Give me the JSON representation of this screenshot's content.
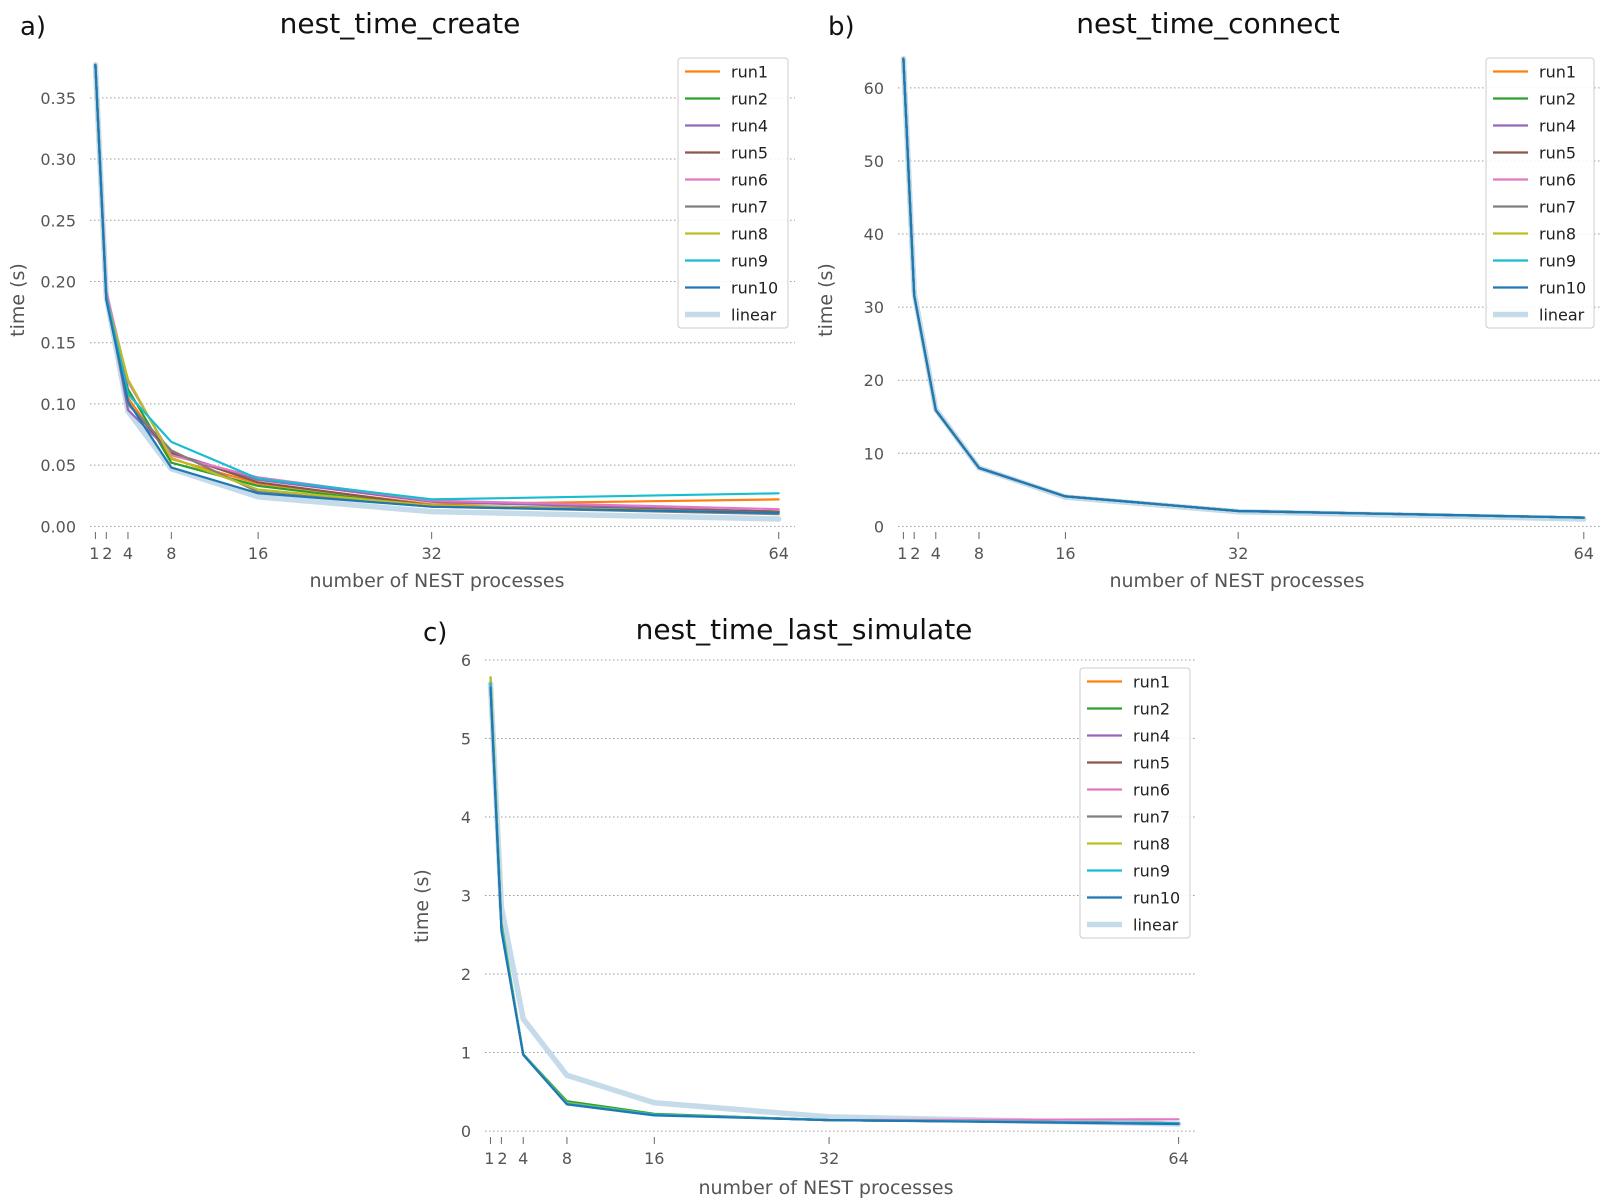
{
  "chart_data": [
    {
      "panel": "a)",
      "type": "line",
      "title": "nest_time_create",
      "xlabel": "number of NEST processes",
      "ylabel": "time (s)",
      "x": [
        1,
        2,
        4,
        8,
        16,
        32,
        64
      ],
      "xticks": [
        1,
        2,
        4,
        8,
        16,
        32,
        64
      ],
      "xtick_labels": [
        "1",
        "2",
        "4",
        "8",
        "16",
        "32",
        "64"
      ],
      "xlim": [
        0.5,
        65.5
      ],
      "ylim": [
        -0.003,
        0.385
      ],
      "yticks": [
        0.0,
        0.05,
        0.1,
        0.15,
        0.2,
        0.25,
        0.3,
        0.35
      ],
      "ytick_labels": [
        "0.00",
        "0.05",
        "0.10",
        "0.15",
        "0.20",
        "0.25",
        "0.30",
        "0.35"
      ],
      "grid": "horizontal dotted",
      "legend": "top-right",
      "series": [
        {
          "name": "run1",
          "color": "#ff7f0e",
          "values": [
            0.377,
            0.187,
            0.105,
            0.055,
            0.035,
            0.018,
            0.022
          ]
        },
        {
          "name": "run2",
          "color": "#2ca02c",
          "values": [
            0.377,
            0.188,
            0.112,
            0.052,
            0.033,
            0.016,
            0.012
          ]
        },
        {
          "name": "run4",
          "color": "#9467bd",
          "values": [
            0.377,
            0.19,
            0.095,
            0.06,
            0.038,
            0.02,
            0.012
          ]
        },
        {
          "name": "run5",
          "color": "#8c564b",
          "values": [
            0.377,
            0.186,
            0.1,
            0.06,
            0.036,
            0.017,
            0.012
          ]
        },
        {
          "name": "run6",
          "color": "#e377c2",
          "values": [
            0.377,
            0.192,
            0.118,
            0.058,
            0.04,
            0.021,
            0.014
          ]
        },
        {
          "name": "run7",
          "color": "#7f7f7f",
          "values": [
            0.377,
            0.186,
            0.1,
            0.062,
            0.028,
            0.016,
            0.01
          ]
        },
        {
          "name": "run8",
          "color": "#bcbd22",
          "values": [
            0.377,
            0.187,
            0.12,
            0.056,
            0.03,
            0.017,
            0.011
          ]
        },
        {
          "name": "run9",
          "color": "#17becf",
          "values": [
            0.377,
            0.188,
            0.108,
            0.069,
            0.039,
            0.022,
            0.027
          ]
        },
        {
          "name": "run10",
          "color": "#1f77b4",
          "values": [
            0.377,
            0.185,
            0.102,
            0.048,
            0.027,
            0.016,
            0.011
          ]
        },
        {
          "name": "linear",
          "color": "#c6dbea",
          "values": [
            0.377,
            0.188,
            0.094,
            0.047,
            0.024,
            0.012,
            0.006
          ]
        }
      ]
    },
    {
      "panel": "b)",
      "type": "line",
      "title": "nest_time_connect",
      "xlabel": "number of NEST processes",
      "ylabel": "time (s)",
      "x": [
        1,
        2,
        4,
        8,
        16,
        32,
        64
      ],
      "xticks": [
        1,
        2,
        4,
        8,
        16,
        32,
        64
      ],
      "xtick_labels": [
        "1",
        "2",
        "4",
        "8",
        "16",
        "32",
        "64"
      ],
      "xlim": [
        0.5,
        65.5
      ],
      "ylim": [
        -0.5,
        64.5
      ],
      "yticks": [
        0,
        10,
        20,
        30,
        40,
        50,
        60
      ],
      "ytick_labels": [
        "0",
        "10",
        "20",
        "30",
        "40",
        "50",
        "60"
      ],
      "grid": "horizontal dotted",
      "legend": "top-right",
      "series": [
        {
          "name": "run1",
          "color": "#ff7f0e",
          "values": [
            64.0,
            31.6,
            15.9,
            8.0,
            4.1,
            2.1,
            1.2
          ]
        },
        {
          "name": "run2",
          "color": "#2ca02c",
          "values": [
            64.0,
            31.6,
            15.9,
            8.0,
            4.1,
            2.1,
            1.2
          ]
        },
        {
          "name": "run4",
          "color": "#9467bd",
          "values": [
            64.0,
            31.6,
            15.9,
            8.0,
            4.1,
            2.1,
            1.2
          ]
        },
        {
          "name": "run5",
          "color": "#8c564b",
          "values": [
            64.0,
            31.6,
            15.9,
            8.0,
            4.1,
            2.1,
            1.2
          ]
        },
        {
          "name": "run6",
          "color": "#e377c2",
          "values": [
            64.0,
            31.6,
            15.9,
            8.0,
            4.1,
            2.1,
            1.2
          ]
        },
        {
          "name": "run7",
          "color": "#7f7f7f",
          "values": [
            64.0,
            31.6,
            15.9,
            8.0,
            4.1,
            2.1,
            1.2
          ]
        },
        {
          "name": "run8",
          "color": "#bcbd22",
          "values": [
            64.0,
            31.6,
            15.9,
            8.0,
            4.1,
            2.1,
            1.2
          ]
        },
        {
          "name": "run9",
          "color": "#17becf",
          "values": [
            64.0,
            31.6,
            15.9,
            8.0,
            4.1,
            2.1,
            1.2
          ]
        },
        {
          "name": "run10",
          "color": "#1f77b4",
          "values": [
            64.0,
            31.6,
            15.9,
            8.0,
            4.1,
            2.1,
            1.2
          ]
        },
        {
          "name": "linear",
          "color": "#c6dbea",
          "values": [
            64.0,
            32.0,
            16.0,
            8.0,
            4.0,
            2.0,
            1.0
          ]
        }
      ]
    },
    {
      "panel": "c)",
      "type": "line",
      "title": "nest_time_last_simulate",
      "xlabel": "number of NEST processes",
      "ylabel": "time (s)",
      "x": [
        1,
        2,
        4,
        8,
        16,
        32,
        64
      ],
      "xticks": [
        1,
        2,
        4,
        8,
        16,
        32,
        64
      ],
      "xtick_labels": [
        "1",
        "2",
        "4",
        "8",
        "16",
        "32",
        "64"
      ],
      "xlim": [
        0.5,
        65.5
      ],
      "ylim": [
        -0.05,
        6.0
      ],
      "yticks": [
        0,
        1,
        2,
        3,
        4,
        5,
        6
      ],
      "ytick_labels": [
        "0",
        "1",
        "2",
        "3",
        "4",
        "5",
        "6"
      ],
      "grid": "horizontal dotted",
      "legend": "top-right",
      "series": [
        {
          "name": "run1",
          "color": "#ff7f0e",
          "values": [
            5.7,
            2.6,
            0.98,
            0.36,
            0.21,
            0.14,
            0.1
          ]
        },
        {
          "name": "run2",
          "color": "#2ca02c",
          "values": [
            5.78,
            2.65,
            0.98,
            0.38,
            0.22,
            0.14,
            0.1
          ]
        },
        {
          "name": "run4",
          "color": "#9467bd",
          "values": [
            5.7,
            2.6,
            0.98,
            0.35,
            0.21,
            0.14,
            0.1
          ]
        },
        {
          "name": "run5",
          "color": "#8c564b",
          "values": [
            5.7,
            2.6,
            0.98,
            0.35,
            0.21,
            0.14,
            0.1
          ]
        },
        {
          "name": "run6",
          "color": "#e377c2",
          "values": [
            5.7,
            2.6,
            0.98,
            0.35,
            0.21,
            0.14,
            0.15
          ]
        },
        {
          "name": "run7",
          "color": "#7f7f7f",
          "values": [
            5.7,
            2.6,
            0.98,
            0.35,
            0.21,
            0.14,
            0.1
          ]
        },
        {
          "name": "run8",
          "color": "#bcbd22",
          "values": [
            5.78,
            2.62,
            0.98,
            0.36,
            0.21,
            0.14,
            0.1
          ]
        },
        {
          "name": "run9",
          "color": "#17becf",
          "values": [
            5.7,
            2.6,
            0.98,
            0.35,
            0.21,
            0.14,
            0.1
          ]
        },
        {
          "name": "run10",
          "color": "#1f77b4",
          "values": [
            5.65,
            2.55,
            0.97,
            0.34,
            0.2,
            0.14,
            0.09
          ]
        },
        {
          "name": "linear",
          "color": "#c6dbea",
          "values": [
            5.7,
            2.85,
            1.43,
            0.71,
            0.36,
            0.18,
            0.09
          ]
        }
      ]
    }
  ]
}
